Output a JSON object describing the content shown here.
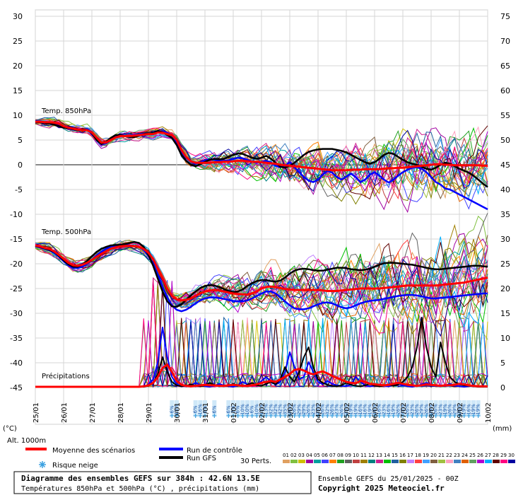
{
  "chart_data": {
    "type": "line",
    "left_axis_ticks": [
      "30",
      "25",
      "20",
      "15",
      "10",
      "5",
      "0",
      "-5",
      "-10",
      "-15",
      "-20",
      "-25",
      "-30",
      "-35",
      "-40",
      "-45"
    ],
    "right_axis_ticks": [
      "75",
      "70",
      "65",
      "60",
      "55",
      "50",
      "45",
      "40",
      "35",
      "30",
      "25",
      "20",
      "15",
      "10",
      "5",
      "0"
    ],
    "left_axis_unit": "(°C)",
    "right_axis_unit": "(mm)",
    "alt_label": "Alt. 1000m",
    "date_labels": [
      "25/01",
      "26/01",
      "27/01",
      "28/01",
      "29/01",
      "30/01",
      "31/01",
      "01/02",
      "02/02",
      "03/02",
      "04/02",
      "05/02",
      "06/02",
      "07/02",
      "08/02",
      "09/02",
      "10/02"
    ],
    "panel_labels": {
      "t850": "Temp. 850hPa",
      "t500": "Temp. 500hPa",
      "precip": "Précipitations"
    },
    "x_steps": 97,
    "temp850": {
      "mean": [
        8.7,
        8.7,
        8.6,
        8.6,
        8.5,
        8.3,
        7.8,
        7.5,
        7.3,
        7.1,
        7.0,
        7.0,
        6.5,
        5.5,
        4.5,
        4.5,
        5.0,
        5.5,
        5.8,
        5.8,
        5.8,
        5.9,
        6.0,
        6.1,
        6.2,
        6.2,
        6.5,
        6.5,
        6.2,
        6.0,
        5.0,
        3.0,
        1.6,
        0.7,
        0.4,
        0.4,
        0.4,
        0.4,
        0.5,
        0.5,
        0.6,
        0.6,
        0.7,
        0.8,
        0.8,
        0.7,
        0.6,
        0.6,
        0.5,
        0.4,
        0.3,
        0.2,
        0.0,
        -0.1,
        -0.2,
        -0.3,
        -0.4,
        -0.5,
        -0.6,
        -0.7,
        -0.8,
        -0.9,
        -1.0,
        -1.1,
        -1.1,
        -1.1,
        -1.1,
        -1.0,
        -1.0,
        -1.0,
        -0.9,
        -0.9,
        -0.9,
        -0.9,
        -0.8,
        -0.7,
        -0.7,
        -0.6,
        -0.6,
        -0.5,
        -0.4,
        -0.3,
        -0.2,
        -0.1,
        0.0,
        0.1,
        0.1,
        0.0,
        0.0,
        -0.1,
        -0.1,
        -0.1,
        -0.1,
        -0.1,
        -0.1,
        -0.2,
        -0.2
      ],
      "control": [
        8.8,
        8.8,
        8.5,
        8.4,
        8.2,
        8.0,
        7.6,
        7.3,
        7.1,
        7.0,
        7.1,
        7.2,
        6.6,
        5.2,
        4.2,
        4.3,
        5.0,
        5.6,
        6.0,
        5.9,
        5.8,
        6.0,
        6.2,
        6.3,
        6.4,
        6.3,
        6.6,
        6.8,
        6.4,
        6.0,
        4.6,
        2.6,
        1.4,
        0.6,
        0.2,
        0.5,
        0.9,
        1.1,
        1.0,
        0.8,
        0.8,
        0.9,
        1.2,
        1.4,
        1.3,
        1.0,
        0.6,
        0.4,
        0.6,
        0.8,
        0.5,
        -0.2,
        -0.5,
        -0.2,
        0.5,
        -0.5,
        -1.5,
        -2.5,
        -3.2,
        -3.5,
        -3.0,
        -2.0,
        -1.2,
        -1.6,
        -2.5,
        -3.0,
        -2.4,
        -1.8,
        -2.5,
        -3.5,
        -3.0,
        -2.0,
        -1.5,
        -2.2,
        -3.0,
        -3.6,
        -3.0,
        -2.2,
        -1.5,
        -1.0,
        -0.6,
        -0.5,
        -0.8,
        -1.5,
        -2.5,
        -3.5,
        -4.0,
        -4.8,
        -5.0,
        -5.5,
        -6.0,
        -6.5,
        -7.0,
        -7.5,
        -8.0,
        -8.5,
        -9.0
      ],
      "gfs": [
        8.6,
        8.6,
        8.5,
        8.4,
        8.1,
        7.8,
        7.5,
        7.4,
        7.2,
        7.0,
        7.2,
        7.0,
        6.4,
        5.0,
        4.2,
        4.6,
        5.4,
        6.0,
        6.0,
        5.8,
        5.6,
        5.6,
        5.9,
        6.2,
        6.4,
        6.4,
        6.8,
        6.6,
        6.0,
        5.4,
        4.0,
        2.0,
        0.8,
        0.0,
        -0.3,
        0.1,
        0.6,
        1.0,
        1.2,
        1.1,
        1.2,
        1.6,
        2.0,
        2.3,
        2.2,
        1.8,
        1.4,
        1.2,
        1.4,
        1.8,
        1.2,
        0.4,
        -0.4,
        -0.6,
        -0.2,
        0.4,
        1.2,
        2.0,
        2.6,
        2.9,
        3.1,
        3.2,
        3.2,
        3.2,
        3.0,
        2.8,
        2.5,
        2.0,
        1.5,
        1.0,
        0.5,
        0.2,
        0.5,
        1.2,
        2.0,
        2.4,
        2.2,
        1.6,
        1.0,
        0.5,
        0.2,
        0.0,
        -0.4,
        -0.8,
        -1.0,
        -0.6,
        0.0,
        0.4,
        0.2,
        -0.3,
        -0.8,
        -1.2,
        -1.6,
        -2.2,
        -3.0,
        -3.8,
        -4.5
      ]
    },
    "temp500": {
      "mean": [
        -16.3,
        -16.5,
        -16.8,
        -17.0,
        -17.5,
        -18.2,
        -19.0,
        -19.8,
        -20.3,
        -20.4,
        -20.2,
        -19.8,
        -19.2,
        -18.6,
        -18.0,
        -17.5,
        -17.0,
        -16.7,
        -16.5,
        -16.4,
        -16.4,
        -16.4,
        -16.6,
        -17.0,
        -17.8,
        -19.0,
        -21.0,
        -23.0,
        -25.0,
        -26.5,
        -27.2,
        -27.4,
        -27.3,
        -27.0,
        -26.5,
        -26.0,
        -25.6,
        -25.4,
        -25.3,
        -25.4,
        -25.6,
        -25.8,
        -26.0,
        -26.1,
        -26.2,
        -26.2,
        -26.0,
        -25.6,
        -25.0,
        -24.7,
        -24.6,
        -24.7,
        -24.9,
        -25.1,
        -25.2,
        -25.3,
        -25.3,
        -25.3,
        -25.3,
        -25.3,
        -25.3,
        -25.4,
        -25.5,
        -25.5,
        -25.5,
        -25.4,
        -25.3,
        -25.2,
        -25.1,
        -25.0,
        -25.0,
        -25.0,
        -25.0,
        -25.0,
        -24.9,
        -24.8,
        -24.7,
        -24.6,
        -24.5,
        -24.4,
        -24.4,
        -24.4,
        -24.4,
        -24.4,
        -24.4,
        -24.4,
        -24.3,
        -24.2,
        -24.1,
        -24.0,
        -23.9,
        -23.8,
        -23.6,
        -23.4,
        -23.2,
        -23.0,
        -22.8
      ],
      "control": [
        -16.5,
        -16.7,
        -17.0,
        -17.3,
        -17.8,
        -18.6,
        -19.5,
        -20.3,
        -20.8,
        -20.9,
        -20.6,
        -20.0,
        -19.2,
        -18.3,
        -17.6,
        -17.0,
        -16.5,
        -16.3,
        -16.2,
        -16.2,
        -16.3,
        -16.4,
        -16.6,
        -17.2,
        -18.4,
        -20.0,
        -22.2,
        -24.6,
        -26.8,
        -28.4,
        -29.3,
        -29.6,
        -29.3,
        -28.7,
        -28.0,
        -27.4,
        -27.0,
        -26.8,
        -26.8,
        -26.9,
        -27.1,
        -27.3,
        -27.5,
        -27.6,
        -27.6,
        -27.4,
        -27.0,
        -26.5,
        -26.0,
        -25.6,
        -25.6,
        -26.0,
        -26.8,
        -27.6,
        -28.4,
        -29.0,
        -29.2,
        -29.2,
        -29.0,
        -28.6,
        -28.2,
        -27.9,
        -27.8,
        -28.0,
        -28.4,
        -28.8,
        -29.0,
        -28.8,
        -28.4,
        -28.0,
        -27.7,
        -27.5,
        -27.4,
        -27.3,
        -27.1,
        -26.9,
        -26.7,
        -26.5,
        -26.4,
        -26.3,
        -26.3,
        -26.4,
        -26.6,
        -26.8,
        -27.0,
        -27.0,
        -26.9,
        -26.8,
        -26.7,
        -26.6,
        -26.5,
        -26.4,
        -26.3,
        -26.2,
        -26.1,
        -26.0,
        -26.0
      ],
      "gfs": [
        -16.4,
        -16.6,
        -16.9,
        -17.2,
        -17.6,
        -18.4,
        -19.3,
        -20.1,
        -20.6,
        -20.6,
        -20.2,
        -19.4,
        -18.5,
        -17.6,
        -17.0,
        -16.6,
        -16.3,
        -16.2,
        -16.2,
        -16.0,
        -15.8,
        -15.6,
        -15.8,
        -16.6,
        -18.2,
        -20.4,
        -23.0,
        -25.6,
        -27.6,
        -28.6,
        -28.7,
        -28.2,
        -27.3,
        -26.4,
        -25.6,
        -24.9,
        -24.5,
        -24.3,
        -24.4,
        -24.7,
        -25.1,
        -25.5,
        -25.7,
        -25.6,
        -25.2,
        -24.5,
        -23.9,
        -23.5,
        -23.3,
        -23.3,
        -23.5,
        -23.6,
        -23.4,
        -22.8,
        -22.0,
        -21.4,
        -21.1,
        -21.0,
        -21.1,
        -21.3,
        -21.4,
        -21.4,
        -21.2,
        -21.0,
        -20.8,
        -20.8,
        -20.9,
        -21.1,
        -21.2,
        -21.3,
        -21.2,
        -21.0,
        -20.6,
        -20.2,
        -19.9,
        -19.8,
        -19.8,
        -19.9,
        -20.0,
        -20.1,
        -20.2,
        -20.4,
        -20.6,
        -20.8,
        -21.0,
        -21.1,
        -21.1,
        -21.0,
        -20.9,
        -20.8,
        -20.7,
        -20.6,
        -20.5,
        -20.4,
        -20.4,
        -20.5,
        -20.6
      ]
    },
    "precip_mm": {
      "mean": [
        0,
        0,
        0,
        0,
        0,
        0,
        0,
        0,
        0,
        0,
        0,
        0,
        0,
        0,
        0,
        0,
        0,
        0,
        0,
        0,
        0,
        0,
        0,
        0.1,
        0.3,
        0.8,
        2.0,
        3.8,
        4.5,
        3.0,
        1.2,
        0.4,
        0.2,
        0.1,
        0.2,
        0.3,
        0.4,
        0.3,
        0.3,
        0.2,
        0.2,
        0.3,
        0.4,
        0.3,
        0.2,
        0.2,
        0.3,
        0.5,
        0.8,
        1.0,
        1.2,
        1.0,
        1.5,
        2.0,
        2.6,
        3.4,
        3.6,
        3.3,
        2.8,
        2.5,
        2.9,
        3.1,
        2.7,
        2.2,
        1.8,
        1.4,
        1.0,
        0.8,
        0.7,
        1.2,
        1.0,
        0.6,
        0.5,
        0.4,
        0.3,
        0.4,
        0.6,
        0.8,
        0.6,
        0.4,
        0.3,
        0.2,
        0.3,
        0.5,
        0.4,
        0.3,
        0.2,
        0.3,
        0.3,
        0.4,
        0.6,
        0.5,
        0.3,
        0.2,
        0.1,
        0.1,
        0.1
      ],
      "control": [
        0,
        0,
        0,
        0,
        0,
        0,
        0,
        0,
        0,
        0,
        0,
        0,
        0,
        0,
        0,
        0,
        0,
        0,
        0,
        0,
        0,
        0,
        0,
        0,
        0.5,
        1.5,
        5.0,
        12.0,
        6.0,
        2.0,
        0.5,
        0.2,
        0.1,
        0.3,
        0.8,
        0.4,
        0.1,
        0,
        0.2,
        0.6,
        0.3,
        0.1,
        0,
        0.3,
        1.0,
        0.5,
        0.2,
        0.4,
        1.2,
        2.0,
        1.0,
        0.4,
        1.0,
        3.0,
        7.0,
        4.0,
        1.5,
        2.0,
        5.0,
        3.0,
        1.0,
        0.5,
        1.2,
        0.6,
        0.3,
        0.2,
        0.1,
        0.5,
        2.0,
        1.0,
        0.3,
        0.1,
        0.2,
        0.4,
        0.2,
        0.1,
        0.3,
        0.6,
        0.3,
        0.1,
        0,
        0.2,
        0.5,
        0.8,
        0.4,
        0.2,
        0.1,
        0.3,
        0.6,
        0.3,
        0.1,
        0,
        0.1,
        0.2,
        0.1,
        0,
        0
      ],
      "gfs": [
        0,
        0,
        0,
        0,
        0,
        0,
        0,
        0,
        0,
        0,
        0,
        0,
        0,
        0,
        0,
        0,
        0,
        0,
        0,
        0,
        0,
        0,
        0,
        0,
        0.2,
        0.8,
        2.5,
        6.0,
        3.0,
        1.0,
        0.3,
        0.1,
        0.2,
        0.5,
        0.2,
        0.1,
        0.3,
        0.8,
        0.4,
        0.2,
        0.1,
        0.2,
        0.6,
        0.3,
        0.1,
        0.4,
        0.8,
        0.3,
        0.2,
        0.6,
        1.0,
        0.5,
        1.5,
        4.0,
        2.0,
        1.0,
        3.0,
        6.0,
        8.0,
        4.0,
        1.5,
        0.8,
        0.4,
        0.2,
        0.1,
        0.3,
        0.8,
        0.4,
        0.2,
        0.1,
        0.3,
        0.6,
        0.2,
        0.1,
        0.2,
        0.4,
        0.2,
        0.5,
        1.0,
        2.0,
        4.0,
        8.0,
        14.0,
        8.0,
        4.0,
        2.0,
        9.0,
        5.0,
        2.0,
        1.0,
        0.5,
        0.3,
        0.2,
        0.1,
        0,
        0,
        0
      ]
    },
    "snow_risk": [
      "6%",
      "13%",
      "6%",
      "16%",
      "6%",
      "6%",
      "6%",
      "3%",
      "6%",
      "10%",
      "10%",
      "6%",
      "10%",
      "13%",
      "13%",
      "32%",
      "32%",
      "42%",
      "35%",
      "26%",
      "26%",
      "29%",
      "29%",
      "26%",
      "23%",
      "23%",
      "26%",
      "32%",
      "26%",
      "23%",
      "26%",
      "23%",
      "19%",
      "19%",
      "16%",
      "16%",
      "19%",
      "16%",
      "16%",
      "23%",
      "16%",
      "19%",
      "26%",
      "32%",
      "26%",
      "23%",
      "26%",
      "29%",
      "26%",
      "29%",
      "26%",
      "23%",
      "19%",
      "26%",
      "29%",
      "26%",
      "19%",
      "16%",
      "19%",
      "19%"
    ],
    "snow_risk_columns": [
      29,
      30,
      34,
      35,
      36,
      38,
      41,
      42,
      43,
      44,
      45,
      46,
      47,
      48,
      49,
      50,
      51,
      52,
      53,
      54,
      55,
      56,
      57,
      58,
      59,
      60,
      61,
      62,
      63,
      64,
      65,
      66,
      67,
      68,
      69,
      70,
      71,
      72,
      73,
      74,
      75,
      76,
      77,
      78,
      79,
      80,
      81,
      82,
      83,
      84,
      85,
      86,
      87,
      88,
      89,
      90,
      91,
      92,
      93,
      94
    ],
    "member_count": 30,
    "member_labels": [
      "01",
      "02",
      "03",
      "04",
      "05",
      "06",
      "07",
      "08",
      "09",
      "10",
      "11",
      "12",
      "13",
      "14",
      "15",
      "16",
      "17",
      "18",
      "19",
      "20",
      "21",
      "22",
      "23",
      "24",
      "25",
      "26",
      "27",
      "28",
      "29",
      "30"
    ],
    "member_colors": [
      "#e0a060",
      "#80c040",
      "#d0c000",
      "#a000a0",
      "#00a0a0",
      "#4040ff",
      "#ff8000",
      "#20a020",
      "#606060",
      "#c04040",
      "#a08000",
      "#008080",
      "#d02090",
      "#00c000",
      "#2060a0",
      "#808000",
      "#c080ff",
      "#ff4040",
      "#40a0ff",
      "#806040",
      "#a0c040",
      "#ffa0c0",
      "#4080c0",
      "#e06000",
      "#60a060",
      "#b000d0",
      "#00b0ff",
      "#600000",
      "#ff0080",
      "#0000a0"
    ]
  },
  "legend": {
    "mean_label": "Moyenne des scénarios",
    "control_label": "Run de contrôle",
    "gfs_label": "Run GFS",
    "snow_label": "Risque neige",
    "perts_label": "30 Perts.",
    "mean_color": "#ff0000",
    "control_color": "#0000ff",
    "gfs_color": "#000000"
  },
  "footer": {
    "title": "Diagramme des ensembles GEFS sur 384h : 42.6N 13.5E",
    "subtitle": "Températures 850hPa et 500hPa (°C) , précipitations (mm)",
    "run": "Ensemble GEFS du 25/01/2025 - 00Z",
    "copyright": "Copyright 2025 Meteociel.fr"
  }
}
